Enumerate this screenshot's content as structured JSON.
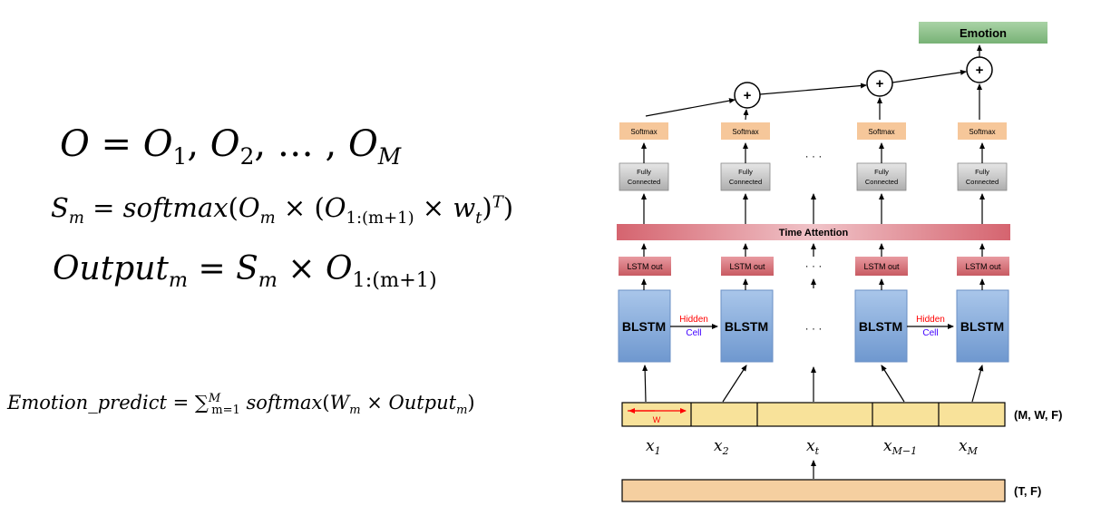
{
  "equations": {
    "eq1": {
      "lhs": "O",
      "rhs_base": "O",
      "sub1": "1",
      "sub2": "2",
      "subM": "M",
      "ellipsis": "…"
    },
    "eq2": {
      "lhs": "S",
      "lhs_sub": "m",
      "func": "softmax",
      "o_sub": "m",
      "range_sub": "1:(m+1)",
      "w_sub": "t",
      "sup": "T"
    },
    "eq3": {
      "lhs": "Output",
      "lhs_sub": "m",
      "s_sub": "m",
      "range_sub": "1:(m+1)"
    },
    "eq4": {
      "lhs": "Emotion_predict",
      "sum_sup": "M",
      "sum_sub": "m=1",
      "func": "softmax",
      "w_sub": "m",
      "out": "Output",
      "out_sub": "m"
    }
  },
  "diagram": {
    "emotion": "Emotion",
    "plus": "+",
    "softmax": "Softmax",
    "fc_line1": "Fully",
    "fc_line2": "Connected",
    "time_attention": "Time Attention",
    "lstm_out": "LSTM out",
    "blstm": "BLSTM",
    "hidden": "Hidden",
    "cell": "Cell",
    "dots": "· · ·",
    "w_label": "W",
    "mwf_label": "(M, W, F)",
    "tf_label": "(T, F)",
    "x_labels": [
      {
        "base": "x",
        "sub": "1"
      },
      {
        "base": "x",
        "sub": "2"
      },
      {
        "base": "x",
        "sub": "t"
      },
      {
        "base": "x",
        "sub": "M−1"
      },
      {
        "base": "x",
        "sub": "M"
      }
    ]
  },
  "colors": {
    "emotion_fill": "#8cc08a",
    "softmax_fill": "#f6c79a",
    "fc_fill": "#c9c9c9",
    "attention_fill": "#dc7d86",
    "lstm_out_fill": "#d77a80",
    "blstm_fill": "#8fb3df",
    "segment_fill": "#f8e29a",
    "input_fill": "#f5cfa0",
    "hidden_color": "#ff0000",
    "cell_color": "#4000ff"
  }
}
